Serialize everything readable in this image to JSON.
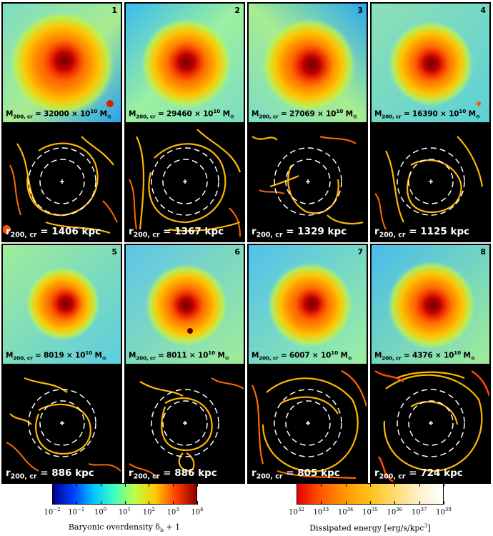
{
  "panels": [
    {
      "number": "1",
      "mass_label": "M",
      "mass_sub": "200, cr",
      "mass_value": " = 32000 × 10",
      "mass_exp": "10",
      "mass_unit": " M",
      "mass_sun": "⊙",
      "radius_label": "r",
      "radius_sub": "200, cr",
      "radius_value": " = 1406 kpc"
    },
    {
      "number": "2",
      "mass_label": "M",
      "mass_sub": "200, cr",
      "mass_value": " = 29460 × 10",
      "mass_exp": "10",
      "mass_unit": " M",
      "mass_sun": "⊙",
      "radius_label": "r",
      "radius_sub": "200, cr",
      "radius_value": " = 1367 kpc"
    },
    {
      "number": "3",
      "mass_label": "M",
      "mass_sub": "200, cr",
      "mass_value": " = 27069 × 10",
      "mass_exp": "10",
      "mass_unit": " M",
      "mass_sun": "⊙",
      "radius_label": "r",
      "radius_sub": "200, cr",
      "radius_value": " = 1329 kpc"
    },
    {
      "number": "4",
      "mass_label": "M",
      "mass_sub": "200, cr",
      "mass_value": " = 16390 × 10",
      "mass_exp": "10",
      "mass_unit": " M",
      "mass_sun": "⊙",
      "radius_label": "r",
      "radius_sub": "200, cr",
      "radius_value": " = 1125 kpc"
    },
    {
      "number": "5",
      "mass_label": "M",
      "mass_sub": "200, cr",
      "mass_value": " = 8019 × 10",
      "mass_exp": "10",
      "mass_unit": " M",
      "mass_sun": "⊙",
      "radius_label": "r",
      "radius_sub": "200, cr",
      "radius_value": " = 886 kpc"
    },
    {
      "number": "6",
      "mass_label": "M",
      "mass_sub": "200, cr",
      "mass_value": " = 8011 × 10",
      "mass_exp": "10",
      "mass_unit": " M",
      "mass_sun": "⊙",
      "radius_label": "r",
      "radius_sub": "200, cr",
      "radius_value": " = 886 kpc"
    },
    {
      "number": "7",
      "mass_label": "M",
      "mass_sub": "200, cr",
      "mass_value": " = 6007 × 10",
      "mass_exp": "10",
      "mass_unit": " M",
      "mass_sun": "⊙",
      "radius_label": "r",
      "radius_sub": "200, cr",
      "radius_value": " = 805 kpc"
    },
    {
      "number": "8",
      "mass_label": "M",
      "mass_sub": "200, cr",
      "mass_value": " = 4376 × 10",
      "mass_exp": "10",
      "mass_unit": " M",
      "mass_sun": "⊙",
      "radius_label": "r",
      "radius_sub": "200, cr",
      "radius_value": " = 724 kpc"
    }
  ],
  "colorbar_density": {
    "label": "Baryonic overdensity δ",
    "label_sub": "b",
    "label_tail": " + 1",
    "ticks": [
      {
        "base": "10",
        "exp": "−2"
      },
      {
        "base": "10",
        "exp": "−1"
      },
      {
        "base": "10",
        "exp": "0"
      },
      {
        "base": "10",
        "exp": "1"
      },
      {
        "base": "10",
        "exp": "2"
      },
      {
        "base": "10",
        "exp": "3"
      },
      {
        "base": "10",
        "exp": "4"
      }
    ],
    "colors": [
      "#00008f",
      "#0040ff",
      "#00c8ff",
      "#40ffbf",
      "#bfff40",
      "#ffc800",
      "#ff4000",
      "#8f0000"
    ]
  },
  "colorbar_energy": {
    "label": "Dissipated energy [erg/s/kpc",
    "label_exp": "3",
    "label_tail": "]",
    "ticks": [
      {
        "base": "10",
        "exp": "32"
      },
      {
        "base": "10",
        "exp": "33"
      },
      {
        "base": "10",
        "exp": "34"
      },
      {
        "base": "10",
        "exp": "35"
      },
      {
        "base": "10",
        "exp": "36"
      },
      {
        "base": "10",
        "exp": "37"
      },
      {
        "base": "10",
        "exp": "38"
      }
    ],
    "colors": [
      "#e60000",
      "#ff5a00",
      "#ff9a00",
      "#ffc21a",
      "#ffdb6e",
      "#fff0c8",
      "#ffffff"
    ]
  }
}
